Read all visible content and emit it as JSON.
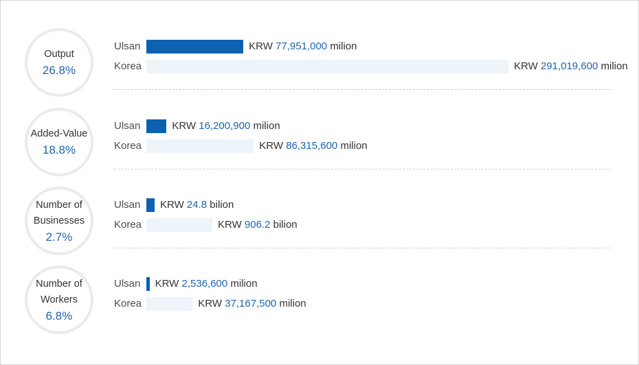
{
  "chart_data": {
    "type": "bar",
    "orientation": "horizontal",
    "series_labels": [
      "Ulsan",
      "Korea"
    ],
    "currency_prefix": "KRW",
    "colors": {
      "ulsan": "#0c61b1",
      "korea": "#edf4fa",
      "accent_text": "#1f63ae"
    },
    "metrics": [
      {
        "name": "Output",
        "share": "26.8%",
        "ulsan_value": 77951000,
        "korea_value": 291019600,
        "ulsan_text": "77,951,000",
        "korea_text": "291,019,600",
        "unit": "milion"
      },
      {
        "name": "Added-Value",
        "share": "18.8%",
        "ulsan_value": 16200900,
        "korea_value": 86315600,
        "ulsan_text": "16,200,900",
        "korea_text": "86,315,600",
        "unit": "milion"
      },
      {
        "name": "Number of\nBusinesses",
        "share": "2.7%",
        "ulsan_value": 24.8,
        "korea_value": 906.2,
        "ulsan_text": "24.8",
        "korea_text": "906.2",
        "unit": "bilion"
      },
      {
        "name": "Number of\nWorkers",
        "share": "6.8%",
        "ulsan_value": 2536600,
        "korea_value": 37167500,
        "ulsan_text": "2,536,600",
        "korea_text": "37,167,500",
        "unit": "milion"
      }
    ]
  }
}
